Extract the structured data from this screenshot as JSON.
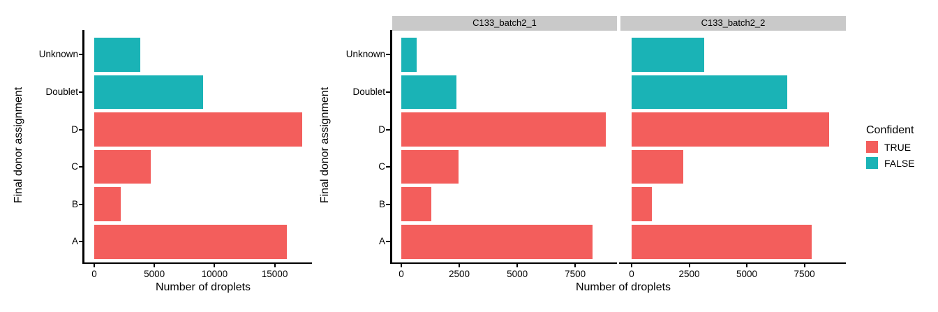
{
  "colors": {
    "confident_true": "#F35E5C",
    "confident_false": "#1AB3B6",
    "strip_bg": "#C9C9C9",
    "axis": "#000000",
    "text": "#000000"
  },
  "legend": {
    "title": "Confident",
    "items": [
      {
        "label": "TRUE",
        "value": "TRUE"
      },
      {
        "label": "FALSE",
        "value": "FALSE"
      }
    ]
  },
  "chart_data": [
    {
      "type": "bar",
      "orientation": "horizontal",
      "title": "",
      "xlabel": "Number of droplets",
      "ylabel": "Final donor assignment",
      "categories_top_to_bottom": [
        "Unknown",
        "Doublet",
        "D",
        "C",
        "B",
        "A"
      ],
      "confident_top_to_bottom": [
        "FALSE",
        "FALSE",
        "TRUE",
        "TRUE",
        "TRUE",
        "TRUE"
      ],
      "values": [
        3800,
        9050,
        17300,
        4700,
        2200,
        16000
      ],
      "x_ticks": [
        0,
        5000,
        10000,
        15000
      ],
      "xlim": [
        0,
        18100
      ],
      "grid": false,
      "legend_position": "none"
    },
    {
      "type": "bar",
      "orientation": "horizontal",
      "title": "",
      "xlabel": "Number of droplets",
      "ylabel": "Final donor assignment",
      "categories_top_to_bottom": [
        "Unknown",
        "Doublet",
        "D",
        "C",
        "B",
        "A"
      ],
      "confident_top_to_bottom": [
        "FALSE",
        "FALSE",
        "TRUE",
        "TRUE",
        "TRUE",
        "TRUE"
      ],
      "facets": [
        {
          "label": "C133_batch2_1",
          "values": [
            670,
            2390,
            8830,
            2480,
            1300,
            8260
          ]
        },
        {
          "label": "C133_batch2_2",
          "values": [
            3140,
            6740,
            8560,
            2240,
            880,
            7800
          ]
        }
      ],
      "x_ticks": [
        0,
        2500,
        5000,
        7500
      ],
      "xlim": [
        0,
        9300
      ],
      "grid": false,
      "legend_position": "right"
    }
  ]
}
